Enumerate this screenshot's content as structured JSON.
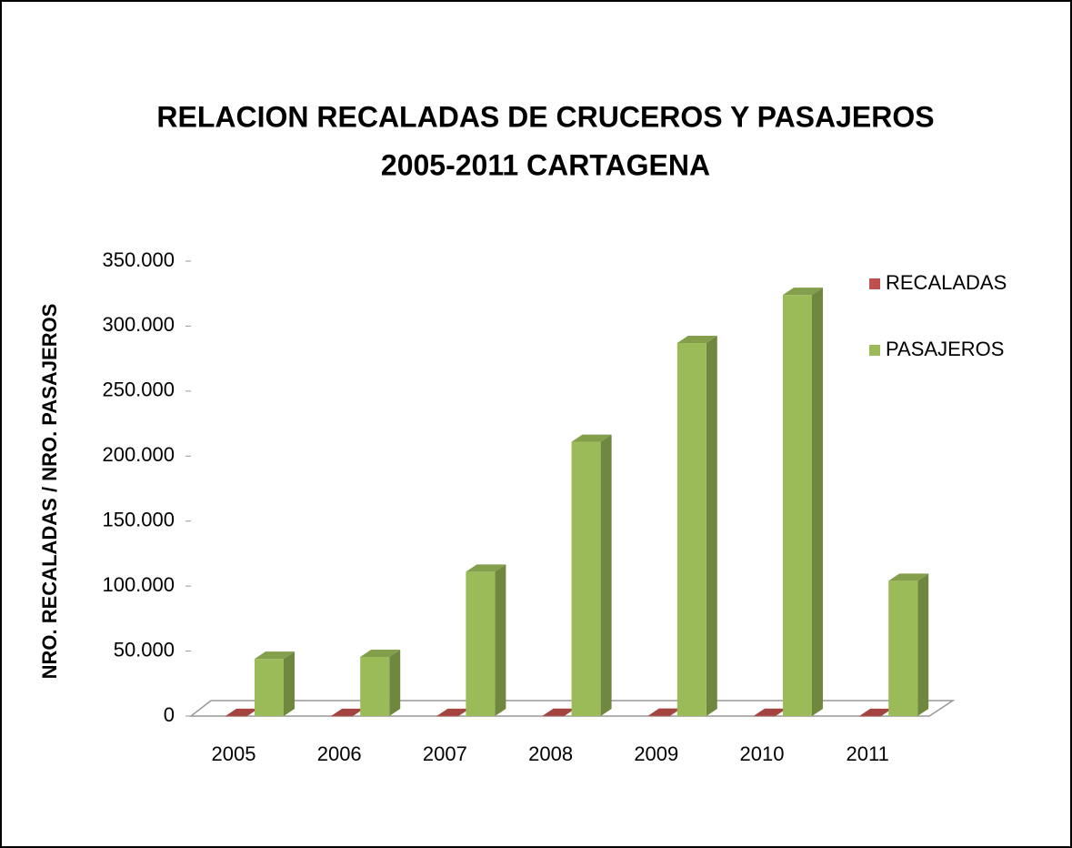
{
  "chart_data": {
    "type": "bar3d",
    "title": [
      "RELACION RECALADAS DE CRUCEROS Y PASAJEROS",
      "2005-2011 CARTAGENA"
    ],
    "y_label": "NRO. RECALADAS / NRO. PASAJEROS",
    "categories": [
      "2005",
      "2006",
      "2007",
      "2008",
      "2009",
      "2010",
      "2011"
    ],
    "series": [
      {
        "name": "RECALADAS",
        "color": "#c0504d",
        "values": [
          60,
          60,
          100,
          180,
          230,
          180,
          80
        ]
      },
      {
        "name": "PASAJEROS",
        "color": "#9bbb59",
        "values": [
          44000,
          45500,
          111000,
          211000,
          287000,
          324000,
          104000
        ]
      }
    ],
    "ylim": [
      0,
      350000
    ],
    "yticks": [
      0,
      {
        "value": 50000,
        "label": "50.000"
      },
      {
        "value": 100000,
        "label": "100.000"
      },
      {
        "value": 150000,
        "label": "150.000"
      },
      {
        "value": 200000,
        "label": "200.000"
      },
      {
        "value": 250000,
        "label": "250.000"
      },
      {
        "value": 300000,
        "label": "300.000"
      },
      {
        "value": 350000,
        "label": "350.000"
      }
    ],
    "legend": "top-right"
  }
}
